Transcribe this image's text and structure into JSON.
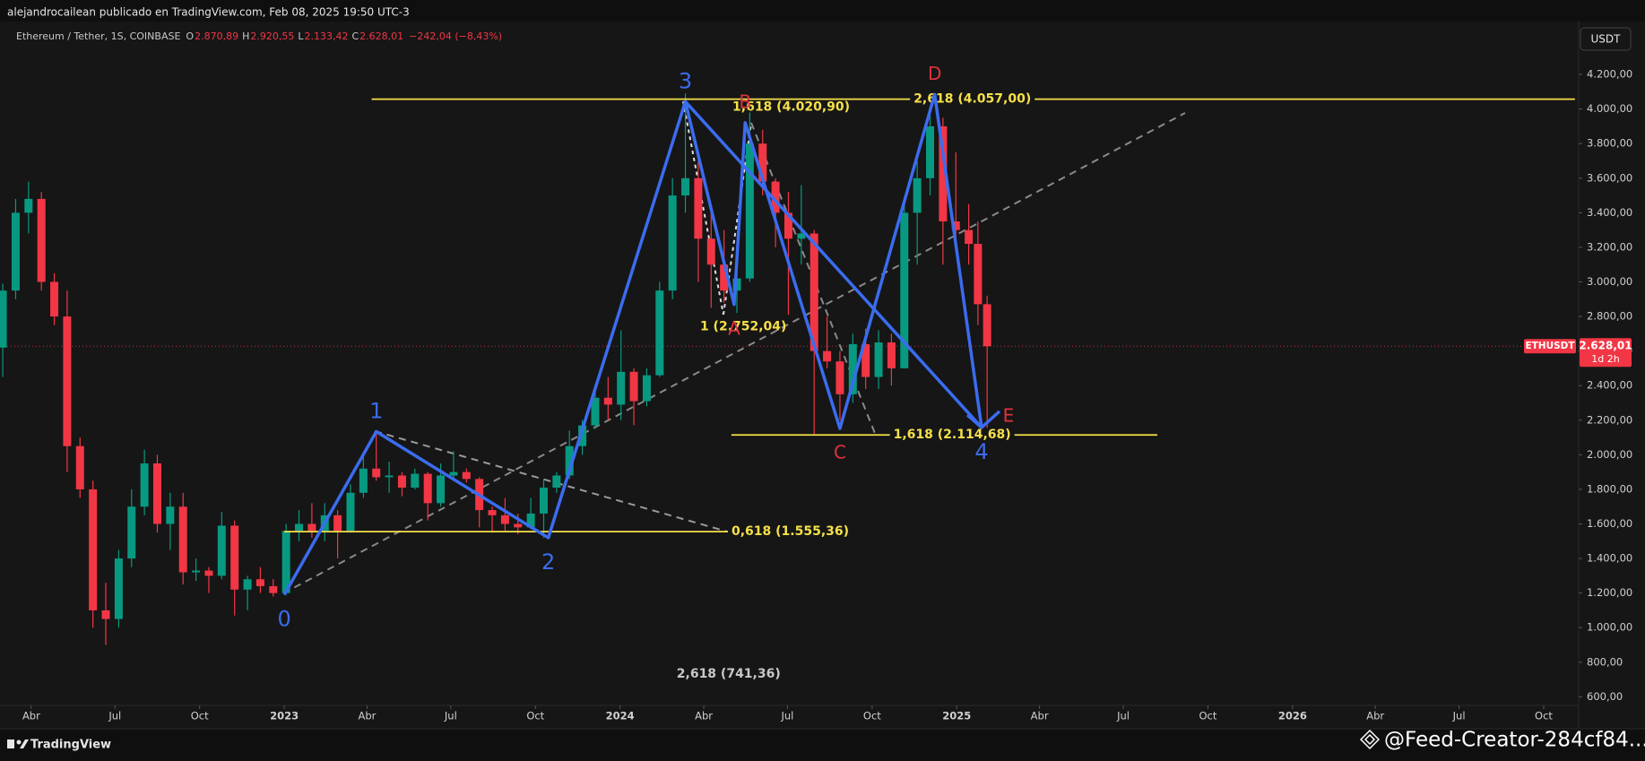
{
  "header": {
    "publisher": "alejandrocailean publicado en TradingView.com, Feb 08, 2025 19:50 UTC-3"
  },
  "chart_data": {
    "type": "candlestick",
    "symbol": "Ethereum / Tether, 1S, COINBASE",
    "ohlc_legend": [
      {
        "key": "O",
        "value": 2870.89,
        "label": "2.870,89"
      },
      {
        "key": "H",
        "value": 2920.55,
        "label": "2.920,55"
      },
      {
        "key": "L",
        "value": 2133.42,
        "label": "2.133,42"
      },
      {
        "key": "C",
        "value": 2628.01,
        "label": "2.628,01"
      }
    ],
    "change": {
      "value": -242.04,
      "label": "−242,04 (−8,43%)"
    },
    "currency": "USDT",
    "x": [
      "2022-03-01",
      "2022-03-15",
      "2022-03-29",
      "2022-04-12",
      "2022-04-26",
      "2022-05-10",
      "2022-05-24",
      "2022-06-07",
      "2022-06-21",
      "2022-07-05",
      "2022-07-19",
      "2022-08-02",
      "2022-08-16",
      "2022-08-30",
      "2022-09-13",
      "2022-09-27",
      "2022-10-11",
      "2022-10-25",
      "2022-11-08",
      "2022-11-22",
      "2022-12-06",
      "2022-12-20",
      "2023-01-03",
      "2023-01-17",
      "2023-01-31",
      "2023-02-14",
      "2023-02-28",
      "2023-03-14",
      "2023-03-28",
      "2023-04-11",
      "2023-04-25",
      "2023-05-09",
      "2023-05-23",
      "2023-06-06",
      "2023-06-20",
      "2023-07-04",
      "2023-07-18",
      "2023-08-01",
      "2023-08-15",
      "2023-08-29",
      "2023-09-12",
      "2023-09-26",
      "2023-10-10",
      "2023-10-24",
      "2023-11-07",
      "2023-11-21",
      "2023-12-05",
      "2023-12-19",
      "2024-01-02",
      "2024-01-16",
      "2024-01-30",
      "2024-02-13",
      "2024-02-27",
      "2024-03-12",
      "2024-03-26",
      "2024-04-09",
      "2024-04-23",
      "2024-05-07",
      "2024-05-21",
      "2024-06-04",
      "2024-06-18",
      "2024-07-02",
      "2024-07-16",
      "2024-07-30",
      "2024-08-13",
      "2024-08-27",
      "2024-09-10",
      "2024-09-24",
      "2024-10-08",
      "2024-10-22",
      "2024-11-05",
      "2024-11-19",
      "2024-12-03",
      "2024-12-17",
      "2024-12-31",
      "2025-01-14",
      "2025-01-24",
      "2025-02-03"
    ],
    "open": [
      2620,
      2950,
      3400,
      3480,
      3000,
      2800,
      2050,
      1800,
      1100,
      1050,
      1400,
      1700,
      1950,
      1600,
      1700,
      1320,
      1330,
      1300,
      1590,
      1220,
      1280,
      1240,
      1200,
      1560,
      1600,
      1560,
      1650,
      1560,
      1780,
      1920,
      1870,
      1880,
      1810,
      1890,
      1720,
      1880,
      1900,
      1860,
      1680,
      1650,
      1600,
      1580,
      1660,
      1810,
      1880,
      2050,
      2170,
      2330,
      2290,
      2480,
      2310,
      2460,
      2950,
      3500,
      3600,
      3250,
      3100,
      2950,
      3020,
      3800,
      3580,
      3400,
      3250,
      3280,
      2600,
      2540,
      2350,
      2640,
      2450,
      2650,
      2500,
      3400,
      3600,
      3900,
      3350,
      3300,
      3220,
      2870.89
    ],
    "high": [
      2990,
      3480,
      3580,
      3520,
      3050,
      2950,
      2100,
      1850,
      1260,
      1450,
      1800,
      2030,
      2000,
      1780,
      1780,
      1400,
      1350,
      1670,
      1620,
      1300,
      1350,
      1280,
      1600,
      1680,
      1720,
      1720,
      1680,
      1830,
      2000,
      2140,
      1960,
      1900,
      1920,
      1900,
      1950,
      2020,
      1920,
      1870,
      1700,
      1750,
      1660,
      1750,
      1860,
      1900,
      2140,
      2200,
      2400,
      2450,
      2720,
      2500,
      2500,
      3000,
      3600,
      4090,
      3700,
      3400,
      3300,
      3100,
      3980,
      3880,
      3600,
      3520,
      3560,
      3300,
      2800,
      2600,
      2700,
      2730,
      2720,
      2700,
      3450,
      3700,
      4100,
      3950,
      3750,
      3450,
      3350,
      2920.55
    ],
    "low": [
      2450,
      2900,
      3280,
      2950,
      2750,
      1900,
      1750,
      1000,
      900,
      1000,
      1350,
      1650,
      1550,
      1450,
      1250,
      1270,
      1200,
      1280,
      1070,
      1100,
      1200,
      1180,
      1190,
      1500,
      1520,
      1500,
      1400,
      1550,
      1750,
      1850,
      1780,
      1760,
      1800,
      1620,
      1700,
      1850,
      1840,
      1580,
      1550,
      1560,
      1540,
      1570,
      1520,
      1780,
      1860,
      2000,
      2150,
      2200,
      2200,
      2170,
      2280,
      2450,
      2900,
      3400,
      3000,
      2850,
      2880,
      2820,
      3000,
      3500,
      3200,
      2810,
      3100,
      2120,
      2500,
      2200,
      2300,
      2380,
      2380,
      2400,
      2500,
      3100,
      3500,
      3100,
      3250,
      3100,
      2750,
      2133.42
    ],
    "close": [
      2950,
      3400,
      3480,
      3000,
      2800,
      2050,
      1800,
      1100,
      1050,
      1400,
      1700,
      1950,
      1600,
      1700,
      1320,
      1330,
      1300,
      1590,
      1220,
      1280,
      1240,
      1200,
      1560,
      1600,
      1560,
      1650,
      1560,
      1780,
      1920,
      1870,
      1880,
      1810,
      1890,
      1720,
      1880,
      1900,
      1860,
      1680,
      1650,
      1600,
      1580,
      1660,
      1810,
      1880,
      2050,
      2170,
      2330,
      2290,
      2480,
      2310,
      2460,
      2950,
      3500,
      3600,
      3250,
      3100,
      2950,
      3020,
      3800,
      3580,
      3400,
      3250,
      3280,
      2600,
      2540,
      2350,
      2640,
      2450,
      2650,
      2500,
      3400,
      3600,
      3900,
      3350,
      3300,
      3220,
      2870.89,
      2628.01
    ],
    "up_color": "#089981",
    "down_color": "#f23645",
    "xlim": [
      "2022-02-26",
      "2026-11-08"
    ],
    "xticks": [
      {
        "value": "2022-04-01",
        "label": "Abr"
      },
      {
        "value": "2022-07-01",
        "label": "Jul"
      },
      {
        "value": "2022-10-01",
        "label": "Oct"
      },
      {
        "value": "2023-01-01",
        "label": "2023"
      },
      {
        "value": "2023-04-01",
        "label": "Abr"
      },
      {
        "value": "2023-07-01",
        "label": "Jul"
      },
      {
        "value": "2023-10-01",
        "label": "Oct"
      },
      {
        "value": "2024-01-01",
        "label": "2024"
      },
      {
        "value": "2024-04-01",
        "label": "Abr"
      },
      {
        "value": "2024-07-01",
        "label": "Jul"
      },
      {
        "value": "2024-10-01",
        "label": "Oct"
      },
      {
        "value": "2025-01-01",
        "label": "2025"
      },
      {
        "value": "2025-04-01",
        "label": "Abr"
      },
      {
        "value": "2025-07-01",
        "label": "Jul"
      },
      {
        "value": "2025-10-01",
        "label": "Oct"
      },
      {
        "value": "2026-01-01",
        "label": "2026"
      },
      {
        "value": "2026-04-01",
        "label": "Abr"
      },
      {
        "value": "2026-07-01",
        "label": "Jul"
      },
      {
        "value": "2026-10-01",
        "label": "Oct"
      }
    ],
    "ylim": [
      550,
      4330
    ],
    "yticks": [
      {
        "value": 600,
        "label": "600,00"
      },
      {
        "value": 800,
        "label": "800,00"
      },
      {
        "value": 1000,
        "label": "1.000,00"
      },
      {
        "value": 1200,
        "label": "1.200,00"
      },
      {
        "value": 1400,
        "label": "1.400,00"
      },
      {
        "value": 1600,
        "label": "1.600,00"
      },
      {
        "value": 1800,
        "label": "1.800,00"
      },
      {
        "value": 2000,
        "label": "2.000,00"
      },
      {
        "value": 2200,
        "label": "2.200,00"
      },
      {
        "value": 2400,
        "label": "2.400,00"
      },
      {
        "value": 2600,
        "label": "2.600,00"
      },
      {
        "value": 2800,
        "label": "2.800,00"
      },
      {
        "value": 3000,
        "label": "3.000,00"
      },
      {
        "value": 3200,
        "label": "3.200,00"
      },
      {
        "value": 3400,
        "label": "3.400,00"
      },
      {
        "value": 3600,
        "label": "3.600,00"
      },
      {
        "value": 3800,
        "label": "3.800,00"
      },
      {
        "value": 4000,
        "label": "4.000,00"
      },
      {
        "value": 4200,
        "label": "4.200,00"
      }
    ],
    "last_price": {
      "value": 2628.01,
      "label": "2.628,01",
      "symbol": "ETHUSDT",
      "countdown": "1d 2h"
    },
    "wave_count": {
      "color": "#3b6cf0",
      "points": [
        {
          "label": "0",
          "x": "2023-01-01",
          "y": 1190,
          "label_pos": "below"
        },
        {
          "label": "1",
          "x": "2023-04-11",
          "y": 2134,
          "label_pos": "above"
        },
        {
          "label": "2",
          "x": "2023-10-15",
          "y": 1520,
          "label_pos": "below"
        },
        {
          "label": "3",
          "x": "2024-03-12",
          "y": 4043,
          "label_pos": "above"
        },
        {
          "label": "4",
          "x": "2025-01-28",
          "y": 2158,
          "label_pos": "below"
        }
      ]
    },
    "correction": {
      "color": "#e0323c",
      "points": [
        {
          "label": "A",
          "x": "2024-05-04",
          "y": 2869,
          "label_pos": "below"
        },
        {
          "label": "B",
          "x": "2024-05-16",
          "y": 3921,
          "label_pos": "above"
        },
        {
          "label": "C",
          "x": "2024-08-27",
          "y": 2152,
          "label_pos": "below"
        },
        {
          "label": "D",
          "x": "2024-12-08",
          "y": 4085,
          "label_pos": "above"
        },
        {
          "label": "E",
          "x": "2025-01-28",
          "y": 2158,
          "label_pos": "right"
        }
      ]
    },
    "fib_levels": [
      {
        "label": "2,618 (4.057,00)",
        "value": 4057.0,
        "x": [
          "2023-04-06",
          "2026-11-04"
        ],
        "label_x": "2025-01-18",
        "color": "#f5e04a"
      },
      {
        "label": "1,618 (4.020,90)",
        "value": 4020.9,
        "label_x": "2024-07-05",
        "color": "#f5e04a"
      },
      {
        "label": "1 (2.752,04)",
        "value": 2752.04,
        "label_x": "2024-05-14",
        "color": "#f5e04a"
      },
      {
        "label": "0,618 (1.555,36)",
        "value": 1555.36,
        "x": [
          "2023-01-01",
          "2024-05-01"
        ],
        "label_x": "2024-07-04",
        "color": "#f5e04a"
      },
      {
        "label": "1,618 (2.114,68)",
        "value": 2114.68,
        "x": [
          "2024-05-01",
          "2025-08-07"
        ],
        "label_x": "2024-12-27",
        "color": "#f5e04a"
      },
      {
        "label": "2,618 (741,36)",
        "value": 741.36,
        "label_x": "2024-04-28",
        "color": "#c8c8c8"
      }
    ]
  },
  "footer": {
    "brand": "TradingView",
    "watermark": "@Feed-Creator-284cf84..."
  }
}
